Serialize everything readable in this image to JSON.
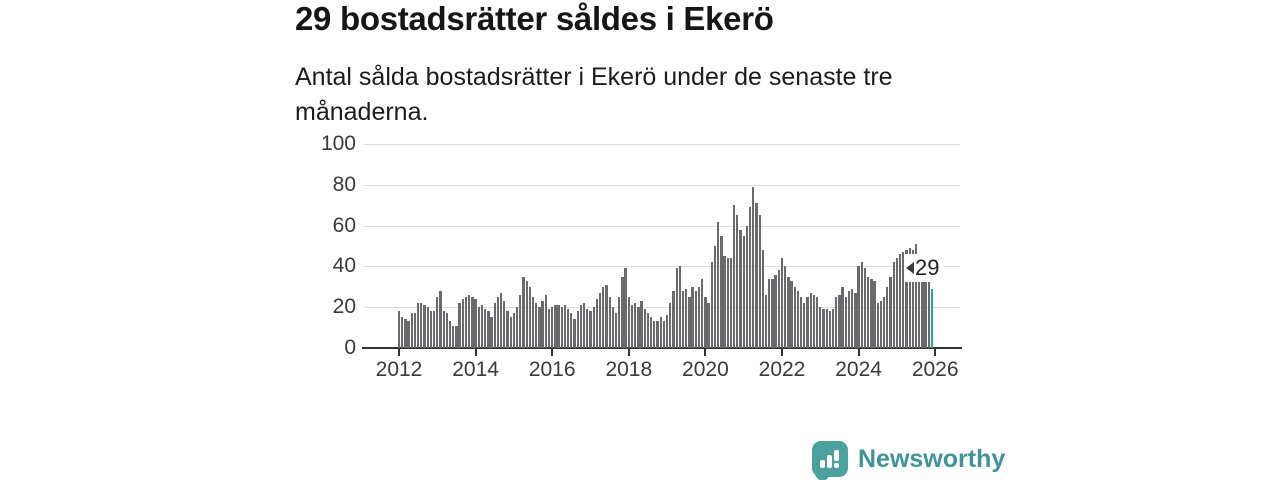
{
  "header": {
    "title": "29 bostadsrätter såldes i Ekerö",
    "subtitle": "Antal sålda bostadsrätter i Ekerö under de senaste tre månaderna."
  },
  "chart_data": {
    "type": "bar",
    "title": "29 bostadsrätter såldes i Ekerö",
    "xlabel": "",
    "ylabel": "",
    "ylim": [
      0,
      100
    ],
    "y_ticks": [
      0,
      20,
      40,
      60,
      80,
      100
    ],
    "x_tick_labels": [
      "2012",
      "2014",
      "2016",
      "2018",
      "2020",
      "2022",
      "2024",
      "2026"
    ],
    "frequency": "monthly",
    "x_start": "2012-01",
    "grid": "horizontal",
    "values": [
      18,
      15,
      14,
      13,
      17,
      17,
      22,
      22,
      21,
      20,
      18,
      18,
      25,
      28,
      18,
      17,
      13,
      11,
      11,
      22,
      24,
      25,
      26,
      25,
      24,
      20,
      21,
      19,
      18,
      15,
      22,
      25,
      27,
      23,
      18,
      15,
      17,
      20,
      26,
      35,
      33,
      30,
      25,
      22,
      20,
      23,
      26,
      19,
      20,
      21,
      21,
      20,
      21,
      19,
      17,
      14,
      18,
      21,
      22,
      19,
      18,
      20,
      24,
      27,
      30,
      31,
      25,
      20,
      17,
      25,
      35,
      39,
      25,
      21,
      22,
      20,
      23,
      19,
      17,
      15,
      13,
      13,
      15,
      13,
      16,
      22,
      28,
      39,
      40,
      28,
      29,
      25,
      30,
      28,
      30,
      34,
      25,
      22,
      42,
      50,
      62,
      55,
      45,
      44,
      44,
      70,
      65,
      58,
      55,
      60,
      69,
      79,
      71,
      65,
      48,
      26,
      34,
      34,
      36,
      38,
      44,
      40,
      35,
      33,
      30,
      28,
      25,
      22,
      25,
      27,
      26,
      25,
      20,
      19,
      19,
      18,
      19,
      25,
      26,
      30,
      25,
      28,
      29,
      27,
      40,
      42,
      39,
      35,
      34,
      33,
      22,
      23,
      25,
      30,
      35,
      42,
      44,
      46,
      47,
      48,
      49,
      48,
      51,
      45,
      42,
      34,
      33,
      29
    ],
    "highlight_index": 167,
    "highlight_label": "29",
    "bar_color": "#6a6a6e",
    "highlight_color": "#1faaa3",
    "gridline_color": "#dcdcdc",
    "axis_color": "#333333"
  },
  "branding": {
    "name": "Newsworthy",
    "icon": "bar-chart-speech-bubble",
    "icon_color": "#4ba19d",
    "text_color": "#3e949a"
  }
}
